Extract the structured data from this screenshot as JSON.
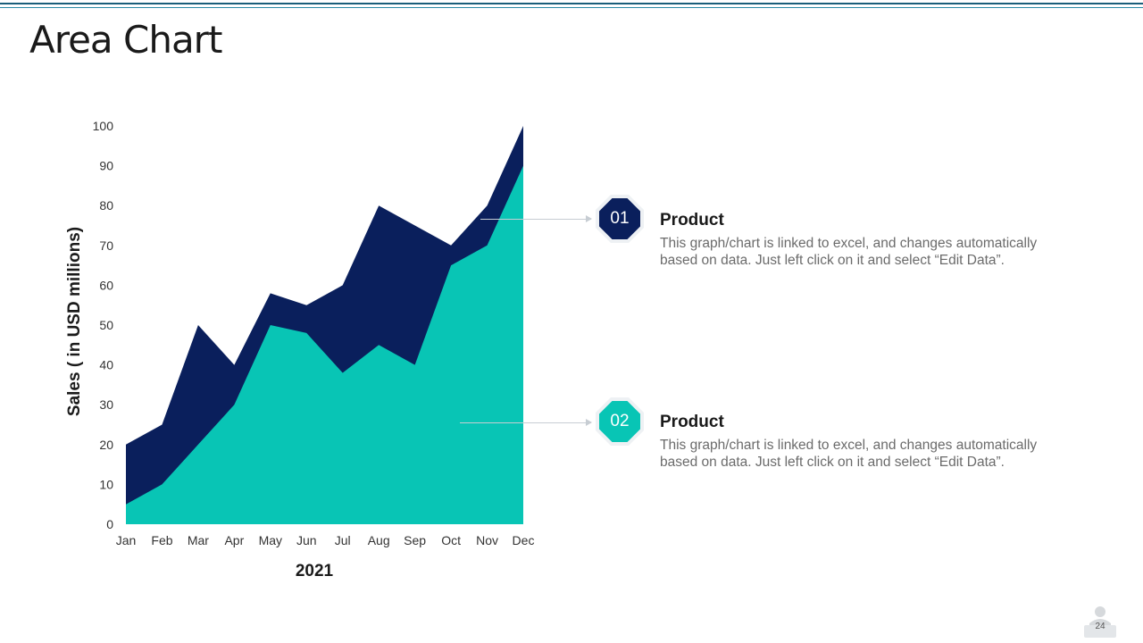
{
  "page": {
    "title": "Area Chart",
    "page_number": "24"
  },
  "colors": {
    "series_1": "#08c5b5",
    "series_2": "#0a1f5c",
    "rule": "#1b5e7a"
  },
  "callouts": [
    {
      "number": "01",
      "title": "Product",
      "text": "This graph/chart is linked to excel, and changes automatically based on data. Just left click on it and select “Edit Data”.",
      "color": "#0a1f5c"
    },
    {
      "number": "02",
      "title": "Product",
      "text": "This graph/chart is linked to excel, and changes automatically based on data. Just left click on it and select “Edit Data”.",
      "color": "#08c5b5"
    }
  ],
  "icons": {
    "badge_shape": "octagon-badge",
    "footer_icon": "presenter-icon"
  },
  "chart_data": {
    "type": "area",
    "stacked": false,
    "categories": [
      "Jan",
      "Feb",
      "Mar",
      "Apr",
      "May",
      "Jun",
      "Jul",
      "Aug",
      "Sep",
      "Oct",
      "Nov",
      "Dec"
    ],
    "series": [
      {
        "values": [
          5,
          10,
          20,
          30,
          50,
          48,
          38,
          45,
          40,
          65,
          70,
          90
        ],
        "color": "#08c5b5"
      },
      {
        "values": [
          20,
          25,
          50,
          40,
          58,
          55,
          60,
          80,
          75,
          70,
          80,
          100
        ],
        "color": "#0a1f5c"
      }
    ],
    "xlabel": "2021",
    "ylabel": "Sales ( in USD millions)",
    "ylim": [
      0,
      100
    ],
    "yticks": [
      0,
      10,
      20,
      30,
      40,
      50,
      60,
      70,
      80,
      90,
      100
    ],
    "grid": false,
    "legend": "none"
  }
}
